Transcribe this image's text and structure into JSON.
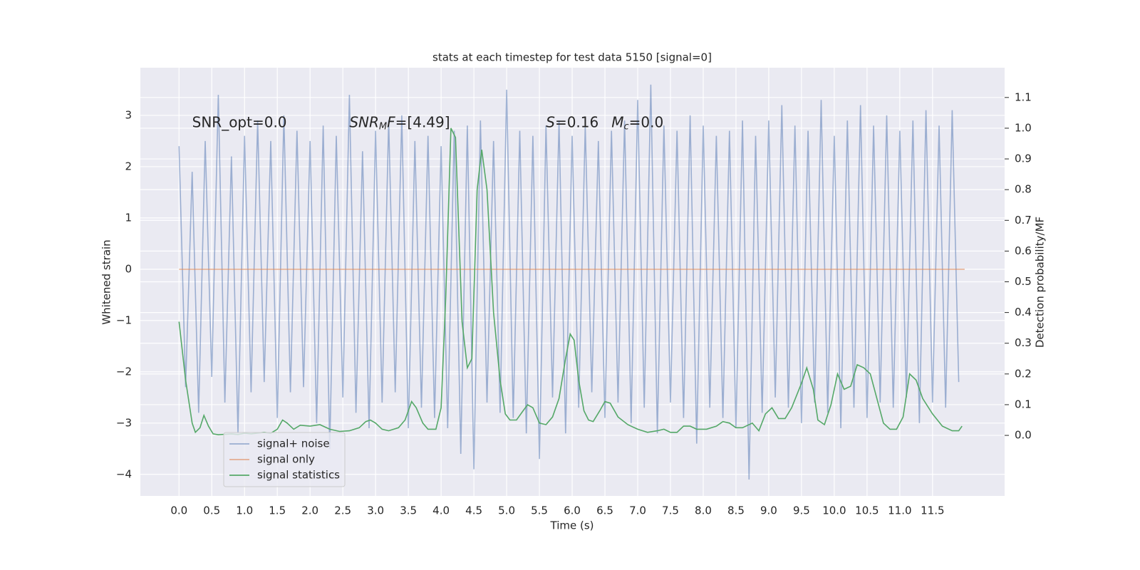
{
  "chart_data": {
    "type": "line",
    "title": "stats at each timestep for test data 5150 [signal=0]",
    "x_label": "Time (s)",
    "y_label": "Whitened strain",
    "y2_label": "Detection probability/MF",
    "annotations": [
      {
        "x": 0.2,
        "parts": [
          {
            "text": "SNR_opt=0.0"
          }
        ]
      },
      {
        "x": 2.6,
        "parts": [
          {
            "text": "SNR",
            "style": "italic"
          },
          {
            "text": "M",
            "style": "italic-sub"
          },
          {
            "text": "F",
            "style": "italic"
          },
          {
            "text": "=[4.49]"
          }
        ]
      },
      {
        "x": 5.6,
        "parts": [
          {
            "text": "S",
            "style": "italic"
          },
          {
            "text": "=0.16"
          }
        ]
      },
      {
        "x": 6.6,
        "parts": [
          {
            "text": "M",
            "style": "italic"
          },
          {
            "text": "c",
            "style": "italic-sub"
          },
          {
            "text": "=0.0"
          }
        ]
      }
    ],
    "annotation_y": 2.85,
    "grid": true,
    "background": "#eaeaf2",
    "legend": "lower left",
    "xlim": [
      -0.59,
      12.6
    ],
    "ylim": [
      -4.42,
      3.93
    ],
    "y2lim": [
      -0.197,
      1.197
    ],
    "xticks": [
      {
        "value": 0,
        "label": "0.0"
      },
      0.5,
      {
        "value": 1,
        "label": "1.0"
      },
      1.5,
      {
        "value": 2,
        "label": "2.0"
      },
      2.5,
      {
        "value": 3,
        "label": "3.0"
      },
      3.5,
      {
        "value": 4,
        "label": "4.0"
      },
      4.5,
      {
        "value": 5,
        "label": "5.0"
      },
      5.5,
      {
        "value": 6,
        "label": "6.0"
      },
      6.5,
      {
        "value": 7,
        "label": "7.0"
      },
      7.5,
      {
        "value": 8,
        "label": "8.0"
      },
      8.5,
      {
        "value": 9,
        "label": "9.0"
      },
      9.5,
      {
        "value": 10,
        "label": "10.0"
      },
      10.5,
      {
        "value": 11,
        "label": "11.0"
      },
      11.5
    ],
    "yticks": [
      {
        "value": -4,
        "label": "−4"
      },
      {
        "value": -3,
        "label": "−3"
      },
      {
        "value": -2,
        "label": "−2"
      },
      {
        "value": -1,
        "label": "−1"
      },
      0,
      1,
      2,
      3
    ],
    "y2ticks": [
      {
        "value": 0,
        "label": "0.0"
      },
      0.1,
      0.2,
      0.3,
      0.4,
      0.5,
      0.6,
      0.7,
      0.8,
      0.9,
      {
        "value": 1,
        "label": "1.0"
      },
      1.1
    ],
    "series": [
      {
        "name": "signal+ noise",
        "color": "#4c72b0",
        "opacity": 0.5,
        "x": [
          0,
          0.1,
          0.2,
          0.3,
          0.4,
          0.5,
          0.6,
          0.7,
          0.8,
          0.9,
          1,
          1.1,
          1.2,
          1.3,
          1.4,
          1.5,
          1.6,
          1.7,
          1.8,
          1.9,
          2,
          2.1,
          2.2,
          2.3,
          2.4,
          2.5,
          2.6,
          2.7,
          2.8,
          2.9,
          3,
          3.1,
          3.2,
          3.3,
          3.4,
          3.5,
          3.6,
          3.7,
          3.8,
          3.9,
          4,
          4.1,
          4.2,
          4.3,
          4.4,
          4.5,
          4.6,
          4.7,
          4.8,
          4.9,
          5,
          5.1,
          5.2,
          5.3,
          5.4,
          5.5,
          5.6,
          5.7,
          5.8,
          5.9,
          6,
          6.1,
          6.2,
          6.3,
          6.4,
          6.5,
          6.6,
          6.7,
          6.8,
          6.9,
          7,
          7.1,
          7.2,
          7.3,
          7.4,
          7.5,
          7.6,
          7.7,
          7.8,
          7.9,
          8,
          8.1,
          8.2,
          8.3,
          8.4,
          8.5,
          8.6,
          8.7,
          8.8,
          8.9,
          9,
          9.1,
          9.2,
          9.3,
          9.4,
          9.5,
          9.6,
          9.7,
          9.8,
          9.9,
          10,
          10.1,
          10.2,
          10.3,
          10.4,
          10.5,
          10.6,
          10.7,
          10.8,
          10.9,
          11,
          11.1,
          11.2,
          11.3,
          11.4,
          11.5,
          11.6,
          11.7,
          11.8,
          11.9
        ],
        "values": [
          2.4,
          -2.3,
          1.9,
          -2.8,
          2.5,
          -2.1,
          3.4,
          -2.6,
          2.2,
          -3.2,
          2.6,
          -2.4,
          2.9,
          -2.2,
          2.5,
          -2.9,
          3.0,
          -2.4,
          2.7,
          -2.3,
          2.5,
          -3.0,
          2.8,
          -3.5,
          2.6,
          -2.5,
          3.4,
          -2.8,
          2.3,
          -3.1,
          2.7,
          -2.6,
          2.9,
          -2.4,
          3.0,
          -3.1,
          2.5,
          -2.7,
          2.6,
          -2.9,
          2.4,
          -3.1,
          2.7,
          -3.6,
          2.8,
          -3.9,
          2.9,
          -2.6,
          2.5,
          -2.8,
          3.5,
          -2.9,
          2.7,
          -3.2,
          2.6,
          -3.7,
          2.8,
          -2.5,
          2.9,
          -3.2,
          2.6,
          -2.7,
          2.8,
          -2.4,
          2.5,
          -2.9,
          2.7,
          -2.6,
          2.9,
          -3.0,
          3.3,
          -2.7,
          3.6,
          -3.2,
          2.8,
          -2.6,
          2.7,
          -2.9,
          3.0,
          -3.4,
          2.8,
          -2.7,
          2.6,
          -2.9,
          2.7,
          -3.1,
          2.9,
          -4.1,
          2.6,
          -2.8,
          2.9,
          -2.5,
          3.2,
          -2.7,
          2.8,
          -3.0,
          2.7,
          -2.6,
          3.3,
          -2.8,
          2.6,
          -3.1,
          2.9,
          -2.7,
          3.2,
          -2.9,
          2.8,
          -2.6,
          3.0,
          -2.7,
          2.7,
          -2.5,
          2.9,
          -3.0,
          3.1,
          -2.6,
          2.8,
          -2.7,
          3.1,
          -2.2
        ]
      },
      {
        "name": "signal only",
        "color": "#dd8452",
        "opacity": 0.6,
        "x": [
          0,
          11.99
        ],
        "values": [
          0,
          0
        ]
      },
      {
        "name": "signal statistics",
        "color": "#55a868",
        "opacity": 1,
        "axis": "y2",
        "x": [
          0,
          0.1,
          0.2,
          0.25,
          0.32,
          0.38,
          0.45,
          0.52,
          0.6,
          0.8,
          0.9,
          1,
          1.1,
          1.3,
          1.4,
          1.5,
          1.58,
          1.65,
          1.75,
          1.85,
          2,
          2.15,
          2.3,
          2.45,
          2.6,
          2.75,
          2.85,
          2.92,
          3,
          3.1,
          3.2,
          3.35,
          3.45,
          3.55,
          3.62,
          3.72,
          3.8,
          3.92,
          4,
          4.07,
          4.15,
          4.22,
          4.32,
          4.4,
          4.47,
          4.55,
          4.62,
          4.7,
          4.8,
          4.9,
          4.98,
          5.05,
          5.15,
          5.25,
          5.32,
          5.4,
          5.5,
          5.6,
          5.7,
          5.8,
          5.9,
          5.97,
          6.03,
          6.1,
          6.18,
          6.25,
          6.32,
          6.42,
          6.5,
          6.58,
          6.7,
          6.85,
          7,
          7.15,
          7.3,
          7.4,
          7.5,
          7.6,
          7.7,
          7.8,
          7.9,
          8.05,
          8.2,
          8.3,
          8.4,
          8.5,
          8.6,
          8.75,
          8.85,
          8.95,
          9.05,
          9.15,
          9.25,
          9.35,
          9.5,
          9.58,
          9.68,
          9.75,
          9.85,
          9.95,
          10.05,
          10.15,
          10.25,
          10.35,
          10.45,
          10.55,
          10.65,
          10.75,
          10.85,
          10.95,
          11.05,
          11.15,
          11.25,
          11.35,
          11.5,
          11.65,
          11.8,
          11.9,
          11.95
        ],
        "values": [
          0.37,
          0.18,
          0.04,
          0.01,
          0.025,
          0.065,
          0.03,
          0.005,
          0.002,
          0.005,
          0.003,
          0.007,
          0.005,
          0.01,
          0.007,
          0.02,
          0.05,
          0.04,
          0.02,
          0.033,
          0.03,
          0.035,
          0.02,
          0.013,
          0.015,
          0.025,
          0.045,
          0.05,
          0.04,
          0.02,
          0.015,
          0.025,
          0.05,
          0.11,
          0.09,
          0.04,
          0.02,
          0.02,
          0.09,
          0.45,
          1.0,
          0.97,
          0.37,
          0.22,
          0.25,
          0.8,
          0.93,
          0.8,
          0.4,
          0.18,
          0.07,
          0.05,
          0.05,
          0.08,
          0.1,
          0.09,
          0.04,
          0.035,
          0.06,
          0.12,
          0.25,
          0.33,
          0.31,
          0.18,
          0.08,
          0.05,
          0.045,
          0.08,
          0.11,
          0.105,
          0.06,
          0.035,
          0.02,
          0.01,
          0.015,
          0.02,
          0.01,
          0.01,
          0.03,
          0.03,
          0.02,
          0.02,
          0.03,
          0.045,
          0.04,
          0.025,
          0.025,
          0.04,
          0.015,
          0.07,
          0.09,
          0.055,
          0.055,
          0.09,
          0.17,
          0.22,
          0.15,
          0.05,
          0.035,
          0.1,
          0.2,
          0.15,
          0.16,
          0.23,
          0.22,
          0.2,
          0.12,
          0.04,
          0.02,
          0.02,
          0.06,
          0.2,
          0.18,
          0.12,
          0.07,
          0.03,
          0.015,
          0.015,
          0.03
        ]
      }
    ]
  }
}
